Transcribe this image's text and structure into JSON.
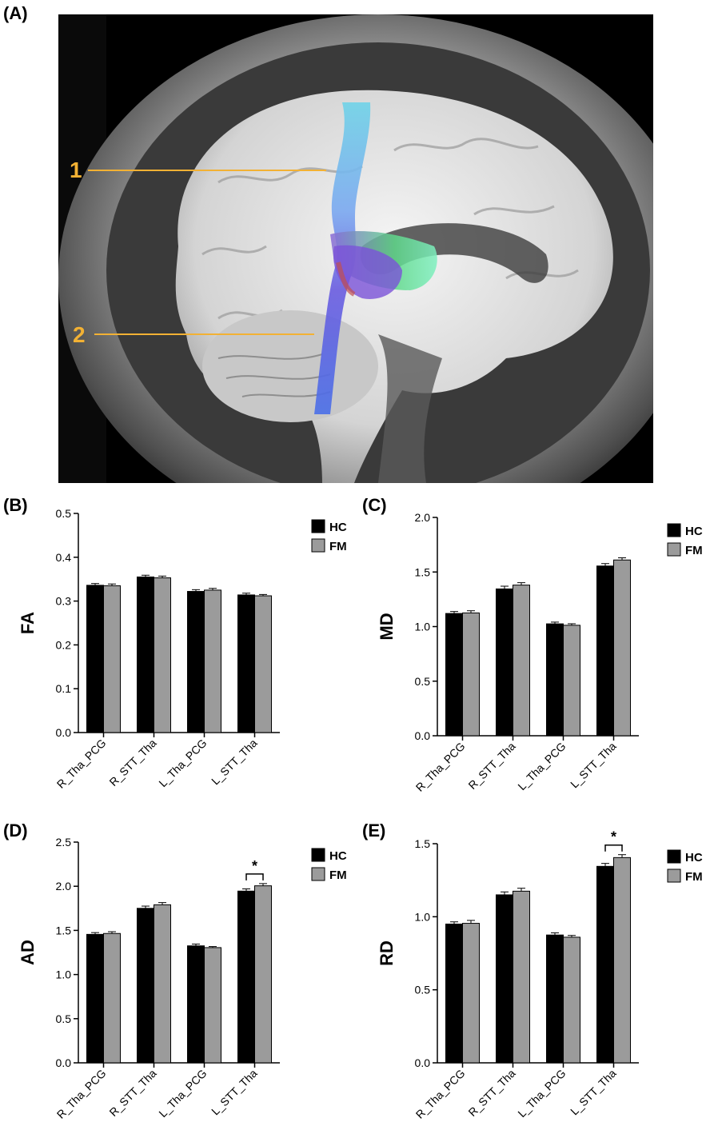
{
  "panel_a": {
    "label": "(A)",
    "annotations": [
      {
        "number": "1"
      },
      {
        "number": "2"
      }
    ],
    "colors": {
      "annotation": "#f2b134",
      "background": "#000000"
    }
  },
  "legend": {
    "hc": "HC",
    "fm": "FM"
  },
  "colors": {
    "hc": "#000000",
    "fm": "#9b9b9b"
  },
  "chart_data": [
    {
      "panel": "(B)",
      "type": "bar",
      "ylabel": "FA",
      "categories": [
        "R_Tha_PCG",
        "R_STT_Tha",
        "L_Tha_PCG",
        "L_STT_Tha"
      ],
      "ylim": [
        0,
        0.5
      ],
      "yticks": [
        "0.0",
        "0.1",
        "0.2",
        "0.3",
        "0.4",
        "0.5"
      ],
      "series": [
        {
          "name": "HC",
          "values": [
            0.336,
            0.355,
            0.322,
            0.314
          ],
          "errors": [
            0.004,
            0.004,
            0.004,
            0.004
          ]
        },
        {
          "name": "FM",
          "values": [
            0.335,
            0.353,
            0.325,
            0.312
          ],
          "errors": [
            0.004,
            0.004,
            0.004,
            0.003
          ]
        }
      ],
      "significance": []
    },
    {
      "panel": "(C)",
      "type": "bar",
      "ylabel": "MD",
      "categories": [
        "R_Tha_PCG",
        "R_STT_Tha",
        "L_Tha_PCG",
        "L_STT_Tha"
      ],
      "ylim": [
        0,
        2.0
      ],
      "yticks": [
        "0.0",
        "0.5",
        "1.0",
        "1.5",
        "2.0"
      ],
      "series": [
        {
          "name": "HC",
          "values": [
            1.12,
            1.345,
            1.025,
            1.555
          ],
          "errors": [
            0.018,
            0.025,
            0.016,
            0.022
          ]
        },
        {
          "name": "FM",
          "values": [
            1.125,
            1.38,
            1.012,
            1.61
          ],
          "errors": [
            0.02,
            0.022,
            0.014,
            0.02
          ]
        }
      ],
      "significance": []
    },
    {
      "panel": "(D)",
      "type": "bar",
      "ylabel": "AD",
      "categories": [
        "R_Tha_PCG",
        "R_STT_Tha",
        "L_Tha_PCG",
        "L_STT_Tha"
      ],
      "ylim": [
        0,
        2.5
      ],
      "yticks": [
        "0.0",
        "0.5",
        "1.0",
        "1.5",
        "2.0",
        "2.5"
      ],
      "series": [
        {
          "name": "HC",
          "values": [
            1.455,
            1.75,
            1.325,
            1.945
          ],
          "errors": [
            0.02,
            0.025,
            0.02,
            0.025
          ]
        },
        {
          "name": "FM",
          "values": [
            1.465,
            1.79,
            1.305,
            2.005
          ],
          "errors": [
            0.02,
            0.025,
            0.012,
            0.025
          ]
        }
      ],
      "significance": [
        {
          "category": "L_STT_Tha",
          "text": "*"
        }
      ]
    },
    {
      "panel": "(E)",
      "type": "bar",
      "ylabel": "RD",
      "categories": [
        "R_Tha_PCG",
        "R_STT_Tha",
        "L_Tha_PCG",
        "L_STT_Tha"
      ],
      "ylim": [
        0,
        1.5
      ],
      "yticks": [
        "0.0",
        "0.5",
        "1.0",
        "1.5"
      ],
      "series": [
        {
          "name": "HC",
          "values": [
            0.95,
            1.15,
            0.875,
            1.345
          ],
          "errors": [
            0.015,
            0.02,
            0.015,
            0.02
          ]
        },
        {
          "name": "FM",
          "values": [
            0.955,
            1.175,
            0.86,
            1.405
          ],
          "errors": [
            0.02,
            0.02,
            0.012,
            0.02
          ]
        }
      ],
      "significance": [
        {
          "category": "L_STT_Tha",
          "text": "*"
        }
      ]
    }
  ]
}
